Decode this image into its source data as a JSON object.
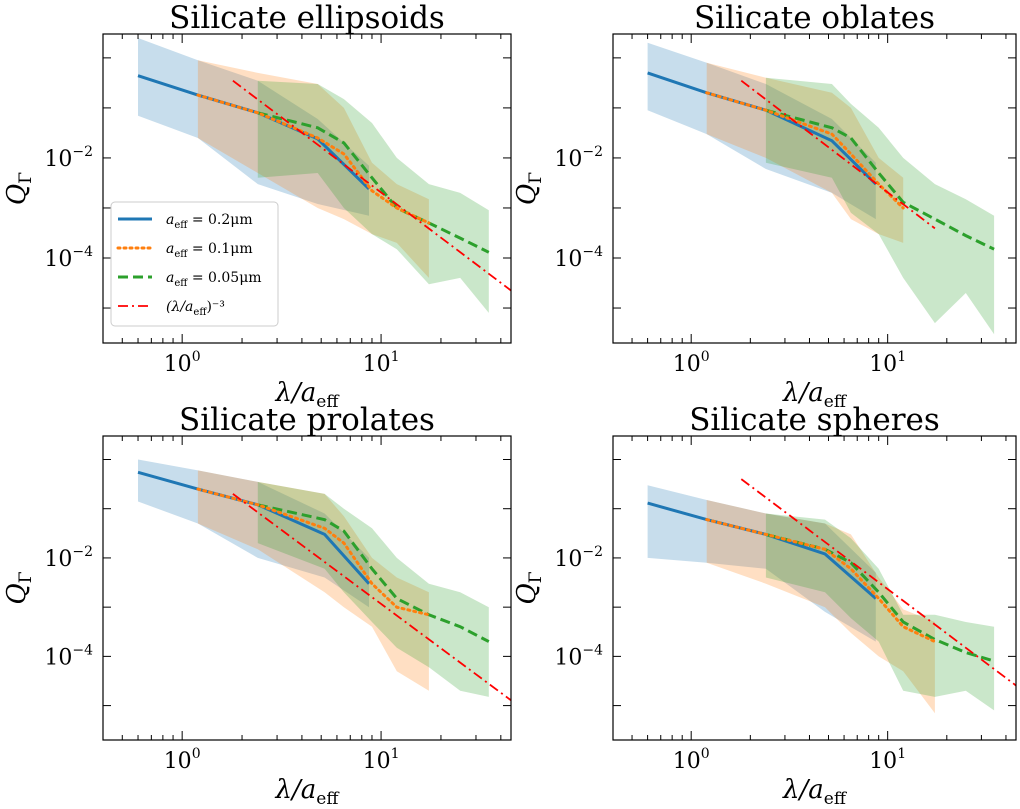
{
  "figure": {
    "legend": [
      {
        "series": "s02",
        "text": "a",
        "sub": "eff",
        "rest": " = 0.2μm"
      },
      {
        "series": "s01",
        "text": "a",
        "sub": "eff",
        "rest": " = 0.1μm"
      },
      {
        "series": "s005",
        "text": "a",
        "sub": "eff",
        "rest": " = 0.05μm"
      },
      {
        "series": "ref",
        "text": "(λ/a",
        "sub": "eff",
        "rest": ")⁻³"
      }
    ]
  },
  "chart_data": [
    {
      "type": "line",
      "title": "Silicate ellipsoids",
      "xlabel": "λ/a",
      "xlabel_sub": "eff",
      "ylabel": "Q",
      "ylabel_sub": "Γ",
      "xscale": "log",
      "yscale": "log",
      "xlim": [
        0.4,
        45
      ],
      "ylim": [
        2e-06,
        3.0
      ],
      "xticks": [
        {
          "value": 1,
          "base": "10",
          "exp": "0"
        },
        {
          "value": 10,
          "base": "10",
          "exp": "1"
        }
      ],
      "yticks": [
        {
          "value": 0.01,
          "base": "10",
          "exp": "−2"
        },
        {
          "value": 0.0001,
          "base": "10",
          "exp": "−4"
        }
      ],
      "legend_position": "lower-left",
      "series": [
        {
          "key": "s02",
          "name": "a_eff = 0.2μm",
          "color": "#1f77b4",
          "style": "solid",
          "x": [
            0.6,
            1.2,
            2.4,
            4.8,
            8.7
          ],
          "y": [
            0.44,
            0.18,
            0.08,
            0.024,
            0.0024
          ],
          "band_upper": [
            2.5,
            0.9,
            0.35,
            0.06,
            0.007
          ],
          "band_lower": [
            0.07,
            0.025,
            0.003,
            0.0012,
            0.0007
          ]
        },
        {
          "key": "s01",
          "name": "a_eff = 0.1μm",
          "color": "#ff7f0e",
          "style": "dotted",
          "x": [
            1.2,
            2.4,
            4.8,
            6.5,
            9,
            12,
            17.4
          ],
          "y": [
            0.18,
            0.08,
            0.025,
            0.012,
            0.0022,
            0.001,
            0.0005
          ],
          "band_upper": [
            0.9,
            0.5,
            0.3,
            0.1,
            0.008,
            0.003,
            0.0015
          ],
          "band_lower": [
            0.025,
            0.005,
            0.001,
            0.0006,
            0.0003,
            0.0002,
            4e-05
          ]
        },
        {
          "key": "s005",
          "name": "a_eff = 0.05μm",
          "color": "#2ca02c",
          "style": "dashed",
          "x": [
            2.4,
            4.8,
            6.5,
            9,
            12,
            17.4,
            25,
            34.8
          ],
          "y": [
            0.08,
            0.04,
            0.02,
            0.004,
            0.001,
            0.0005,
            0.00025,
            0.00013
          ],
          "band_upper": [
            0.35,
            0.3,
            0.15,
            0.05,
            0.01,
            0.003,
            0.002,
            0.0009
          ],
          "band_lower": [
            0.004,
            0.005,
            0.001,
            0.0003,
            0.00015,
            3e-05,
            4e-05,
            8e-06
          ]
        },
        {
          "key": "ref",
          "name": "(λ/a_eff)^-3",
          "color": "#ff0000",
          "style": "dashdot",
          "x": [
            1.8,
            45
          ],
          "y": [
            0.35,
            2.24e-05
          ]
        }
      ]
    },
    {
      "type": "line",
      "title": "Silicate oblates",
      "xlabel": "λ/a",
      "xlabel_sub": "eff",
      "ylabel": "Q",
      "ylabel_sub": "Γ",
      "xscale": "log",
      "yscale": "log",
      "xlim": [
        0.4,
        45
      ],
      "ylim": [
        2e-06,
        3.0
      ],
      "xticks": [
        {
          "value": 1,
          "base": "10",
          "exp": "0"
        },
        {
          "value": 10,
          "base": "10",
          "exp": "1"
        }
      ],
      "yticks": [
        {
          "value": 0.01,
          "base": "10",
          "exp": "−2"
        },
        {
          "value": 0.0001,
          "base": "10",
          "exp": "−4"
        }
      ],
      "series": [
        {
          "key": "s02",
          "name": "a_eff = 0.2μm",
          "color": "#1f77b4",
          "style": "solid",
          "x": [
            0.6,
            1.2,
            2.4,
            5.2,
            8.7
          ],
          "y": [
            0.5,
            0.2,
            0.09,
            0.022,
            0.003
          ],
          "band_upper": [
            2.0,
            0.8,
            0.3,
            0.06,
            0.008
          ],
          "band_lower": [
            0.09,
            0.03,
            0.006,
            0.002,
            0.0006
          ]
        },
        {
          "key": "s01",
          "name": "a_eff = 0.1μm",
          "color": "#ff7f0e",
          "style": "dotted",
          "x": [
            1.2,
            2.4,
            5.2,
            6.5,
            9,
            12
          ],
          "y": [
            0.2,
            0.09,
            0.03,
            0.012,
            0.003,
            0.001
          ],
          "band_upper": [
            0.8,
            0.4,
            0.2,
            0.1,
            0.01,
            0.004
          ],
          "band_lower": [
            0.03,
            0.01,
            0.002,
            0.0006,
            0.0003,
            0.0002
          ]
        },
        {
          "key": "s005",
          "name": "a_eff = 0.05μm",
          "color": "#2ca02c",
          "style": "dashed",
          "x": [
            2.4,
            5.2,
            6.5,
            9,
            12,
            17.4,
            25,
            34.8
          ],
          "y": [
            0.09,
            0.04,
            0.025,
            0.005,
            0.0013,
            0.0006,
            0.00028,
            0.00015
          ],
          "band_upper": [
            0.4,
            0.3,
            0.12,
            0.04,
            0.01,
            0.003,
            0.0015,
            0.0007
          ],
          "band_lower": [
            0.008,
            0.004,
            0.0008,
            0.0003,
            4e-05,
            5e-06,
            2e-05,
            3e-06
          ]
        },
        {
          "key": "ref",
          "name": "(λ/a_eff)^-3",
          "color": "#ff0000",
          "style": "dashdot",
          "x": [
            1.8,
            17.4
          ],
          "y": [
            0.35,
            0.00039
          ]
        }
      ]
    },
    {
      "type": "line",
      "title": "Silicate prolates",
      "xlabel": "λ/a",
      "xlabel_sub": "eff",
      "ylabel": "Q",
      "ylabel_sub": "Γ",
      "xscale": "log",
      "yscale": "log",
      "xlim": [
        0.4,
        45
      ],
      "ylim": [
        2e-06,
        3.0
      ],
      "xticks": [
        {
          "value": 1,
          "base": "10",
          "exp": "0"
        },
        {
          "value": 10,
          "base": "10",
          "exp": "1"
        }
      ],
      "yticks": [
        {
          "value": 0.01,
          "base": "10",
          "exp": "−2"
        },
        {
          "value": 0.0001,
          "base": "10",
          "exp": "−4"
        }
      ],
      "series": [
        {
          "key": "s02",
          "name": "a_eff = 0.2μm",
          "color": "#1f77b4",
          "style": "solid",
          "x": [
            0.6,
            1.2,
            2.4,
            5.2,
            8.7
          ],
          "y": [
            0.55,
            0.25,
            0.12,
            0.03,
            0.003
          ],
          "band_upper": [
            1.0,
            0.6,
            0.35,
            0.08,
            0.01
          ],
          "band_lower": [
            0.14,
            0.05,
            0.01,
            0.004,
            0.001
          ]
        },
        {
          "key": "s01",
          "name": "a_eff = 0.1μm",
          "color": "#ff7f0e",
          "style": "dotted",
          "x": [
            1.2,
            2.4,
            5.2,
            6.5,
            9,
            12,
            17.4
          ],
          "y": [
            0.25,
            0.12,
            0.04,
            0.02,
            0.003,
            0.001,
            0.0007
          ],
          "band_upper": [
            0.6,
            0.35,
            0.2,
            0.07,
            0.01,
            0.004,
            0.002
          ],
          "band_lower": [
            0.05,
            0.015,
            0.002,
            0.001,
            0.0004,
            5e-05,
            2e-05
          ]
        },
        {
          "key": "s005",
          "name": "a_eff = 0.05μm",
          "color": "#2ca02c",
          "style": "dashed",
          "x": [
            2.4,
            5.2,
            6.5,
            9,
            12,
            17.4,
            25,
            34.8
          ],
          "y": [
            0.12,
            0.06,
            0.035,
            0.006,
            0.0015,
            0.0007,
            0.0004,
            0.0002
          ],
          "band_upper": [
            0.35,
            0.2,
            0.1,
            0.04,
            0.01,
            0.003,
            0.002,
            0.001
          ],
          "band_lower": [
            0.02,
            0.006,
            0.002,
            0.0005,
            0.00015,
            6e-05,
            2e-05,
            1.5e-05
          ]
        },
        {
          "key": "ref",
          "name": "(λ/a_eff)^-3",
          "color": "#ff0000",
          "style": "dashdot",
          "x": [
            1.8,
            45
          ],
          "y": [
            0.2,
            1.28e-05
          ]
        }
      ]
    },
    {
      "type": "line",
      "title": "Silicate spheres",
      "xlabel": "λ/a",
      "xlabel_sub": "eff",
      "ylabel": "Q",
      "ylabel_sub": "Γ",
      "xscale": "log",
      "yscale": "log",
      "xlim": [
        0.4,
        45
      ],
      "ylim": [
        2e-06,
        3.0
      ],
      "xticks": [
        {
          "value": 1,
          "base": "10",
          "exp": "0"
        },
        {
          "value": 10,
          "base": "10",
          "exp": "1"
        }
      ],
      "yticks": [
        {
          "value": 0.01,
          "base": "10",
          "exp": "−2"
        },
        {
          "value": 0.0001,
          "base": "10",
          "exp": "−4"
        }
      ],
      "series": [
        {
          "key": "s02",
          "name": "a_eff = 0.2μm",
          "color": "#1f77b4",
          "style": "solid",
          "x": [
            0.6,
            1.2,
            2.4,
            4.8,
            8.7
          ],
          "y": [
            0.13,
            0.06,
            0.03,
            0.012,
            0.0015
          ],
          "band_upper": [
            0.3,
            0.15,
            0.08,
            0.05,
            0.005
          ],
          "band_lower": [
            0.01,
            0.008,
            0.006,
            0.0008,
            0.0002
          ]
        },
        {
          "key": "s01",
          "name": "a_eff = 0.1μm",
          "color": "#ff7f0e",
          "style": "dotted",
          "x": [
            1.2,
            2.4,
            4.8,
            6.5,
            9,
            12,
            17.4
          ],
          "y": [
            0.06,
            0.03,
            0.015,
            0.006,
            0.0015,
            0.0004,
            0.0002
          ],
          "band_upper": [
            0.15,
            0.08,
            0.05,
            0.03,
            0.004,
            0.0009,
            0.0005
          ],
          "band_lower": [
            0.008,
            0.003,
            0.001,
            0.0003,
            0.0001,
            5e-05,
            7e-06
          ]
        },
        {
          "key": "s005",
          "name": "a_eff = 0.05μm",
          "color": "#2ca02c",
          "style": "dashed",
          "x": [
            2.4,
            4.8,
            6.5,
            9,
            12,
            17.4,
            25,
            34.8
          ],
          "y": [
            0.03,
            0.015,
            0.008,
            0.002,
            0.0005,
            0.00022,
            0.00012,
            8e-05
          ],
          "band_upper": [
            0.08,
            0.06,
            0.025,
            0.006,
            0.0007,
            0.0007,
            0.0005,
            0.0004
          ],
          "band_lower": [
            0.004,
            0.002,
            0.0006,
            0.0002,
            2e-05,
            1.5e-05,
            2e-05,
            8e-06
          ]
        },
        {
          "key": "ref",
          "name": "(λ/a_eff)^-3",
          "color": "#ff0000",
          "style": "dashdot",
          "x": [
            1.8,
            45
          ],
          "y": [
            0.4,
            2.56e-05
          ]
        }
      ]
    }
  ]
}
